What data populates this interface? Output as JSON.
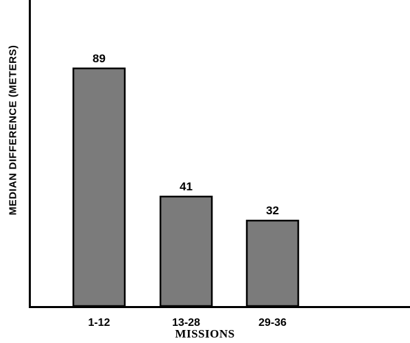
{
  "chart_data": {
    "type": "bar",
    "categories": [
      "1-12",
      "13-28",
      "29-36"
    ],
    "values": [
      89,
      41,
      32
    ],
    "data_labels": [
      "89",
      "41",
      "32"
    ],
    "ylabel": "MEDIAN DIFFERENCE (METERS)",
    "xlabel": "MISSIONS",
    "ylim": [
      0,
      110
    ],
    "bar_color": "#7b7b7b",
    "grid": false,
    "legend": "none"
  }
}
